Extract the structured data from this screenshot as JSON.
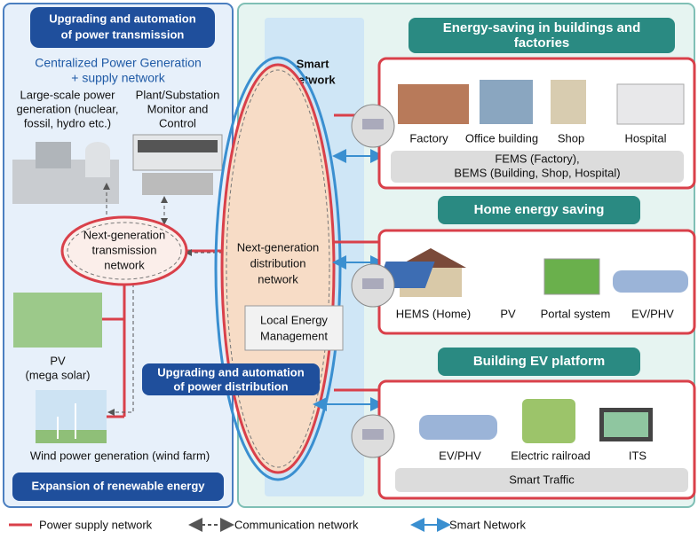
{
  "left_panel": {
    "top_badge": [
      "Upgrading and automation",
      "of power transmission"
    ],
    "heading": [
      "Centralized Power Generation",
      "+ supply network"
    ],
    "generation_label": [
      "Large-scale power",
      "generation (nuclear,",
      "fossil, hydro etc.)"
    ],
    "control_label": [
      "Plant/Substation",
      "Monitor and",
      "Control"
    ],
    "transmission_node": [
      "Next-generation",
      "transmission",
      "network"
    ],
    "pv_label": [
      "PV",
      "(mega solar)"
    ],
    "wind_label": "Wind power generation (wind farm)",
    "bottom_badge": "Expansion of renewable energy"
  },
  "center": {
    "smart_network": [
      "Smart",
      "Network"
    ],
    "distribution_node": [
      "Next-generation",
      "distribution",
      "network"
    ],
    "local_management": [
      "Local Energy",
      "Management"
    ],
    "distribution_badge": [
      "Upgrading and automation",
      "of power distribution"
    ]
  },
  "sections": [
    {
      "title": [
        "Energy-saving in buildings and",
        "factories"
      ],
      "items": [
        "Factory",
        "Office building",
        "Shop",
        "Hospital"
      ],
      "footer": [
        "FEMS (Factory),",
        "BEMS (Building, Shop, Hospital)"
      ]
    },
    {
      "title": [
        "Home energy saving"
      ],
      "items": [
        "HEMS (Home)",
        "PV",
        "Portal system",
        "EV/PHV"
      ]
    },
    {
      "title": [
        "Building EV platform"
      ],
      "items": [
        "EV/PHV",
        "Electric railroad",
        "ITS"
      ],
      "footer": [
        "Smart Traffic"
      ]
    }
  ],
  "legend": [
    "Power supply network",
    "Communication network",
    "Smart Network"
  ]
}
